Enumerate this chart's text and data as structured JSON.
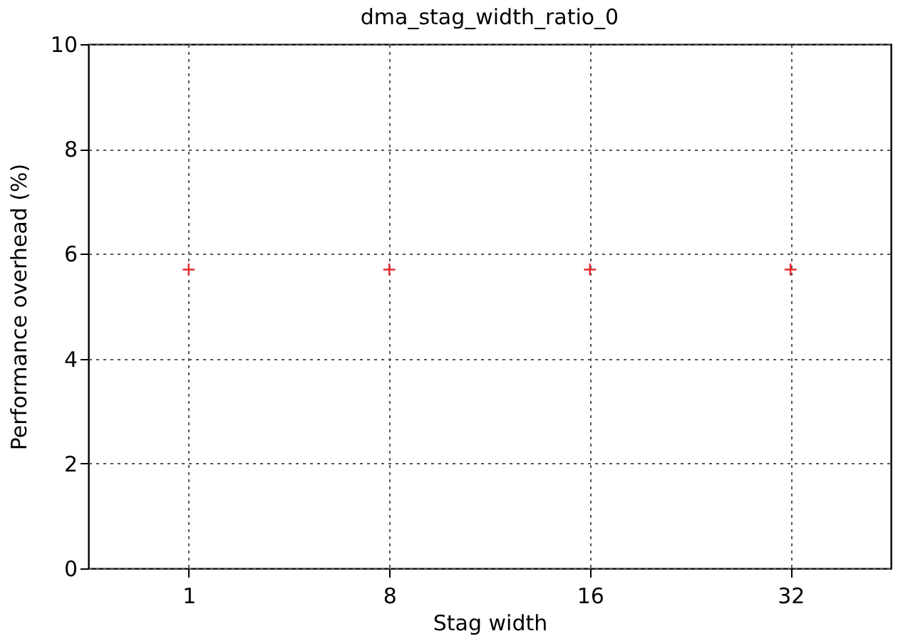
{
  "chart_data": {
    "type": "scatter",
    "title": "dma_stag_width_ratio_0",
    "xlabel": "Stag width",
    "ylabel": "Performance overhead (%)",
    "categories": [
      "1",
      "8",
      "16",
      "32"
    ],
    "series": [
      {
        "color": "#e8282c",
        "values": [
          5.7,
          5.7,
          5.7,
          5.7
        ]
      }
    ],
    "ylim": [
      0,
      10
    ],
    "yticks": [
      0,
      2,
      4,
      6,
      8,
      10
    ],
    "grid": true,
    "marker": "cross"
  }
}
